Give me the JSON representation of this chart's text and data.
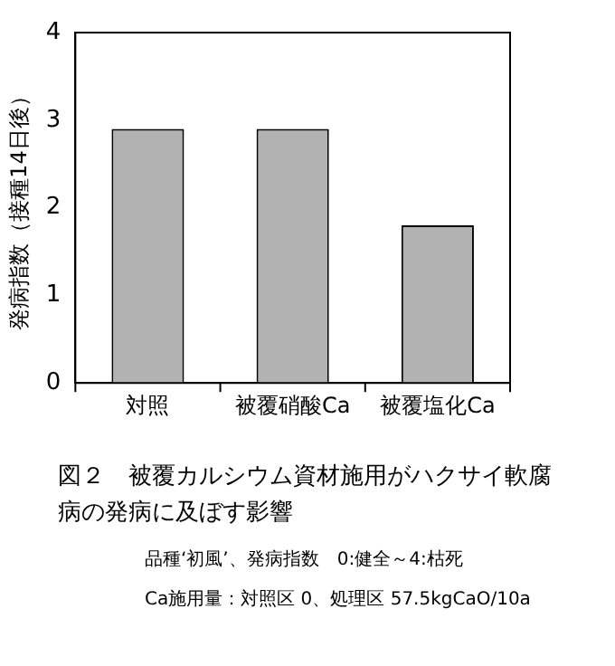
{
  "chart_data": {
    "type": "bar",
    "title": "図２　被覆カルシウム資材施用がハクサイ軟腐病の発病に及ぼす影響",
    "ylabel": "発病指数（接種14日後）",
    "categories": [
      "対照",
      "被覆硝酸Ca",
      "被覆塩化Ca"
    ],
    "values": [
      2.9,
      2.9,
      1.8
    ],
    "color": "#b2b2b2",
    "ylim": [
      0,
      4
    ],
    "yticks": [
      0,
      1,
      2,
      3,
      4
    ],
    "grid": false,
    "legend": false,
    "annotations": [
      "品種‘初風’、発病指数　0:健全～4:枯死",
      "Ca施用量：対照区 0、処理区 57.5kgCaO/10a"
    ]
  }
}
